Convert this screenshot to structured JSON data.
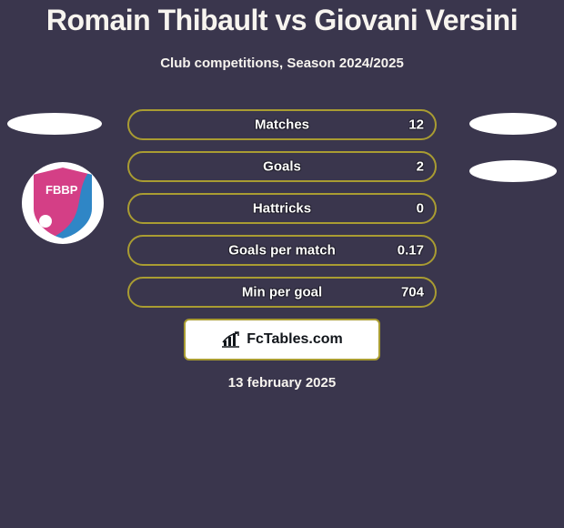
{
  "colors": {
    "page_bg": "#3a364d",
    "text_primary": "#f7f4ef",
    "text_title": "#f7f4ef",
    "accent_olive": "#a99c32",
    "bar_fill": "#3a364d",
    "bar_label": "#ffffff",
    "fctables_bg": "#ffffff",
    "fctables_border": "#a99c32",
    "fctables_text": "#12161b",
    "badge_blue": "#2f86c6",
    "badge_magenta": "#d43f86"
  },
  "header": {
    "title": "Romain Thibault vs Giovani Versini",
    "subtitle": "Club competitions, Season 2024/2025"
  },
  "stats": {
    "rows": [
      {
        "label": "Matches",
        "value": "12"
      },
      {
        "label": "Goals",
        "value": "2"
      },
      {
        "label": "Hattricks",
        "value": "0"
      },
      {
        "label": "Goals per match",
        "value": "0.17"
      },
      {
        "label": "Min per goal",
        "value": "704"
      }
    ]
  },
  "fctables": {
    "label": "FcTables.com"
  },
  "footer": {
    "date": "13 february 2025"
  },
  "club_badge": {
    "acronym": "FBBP"
  }
}
